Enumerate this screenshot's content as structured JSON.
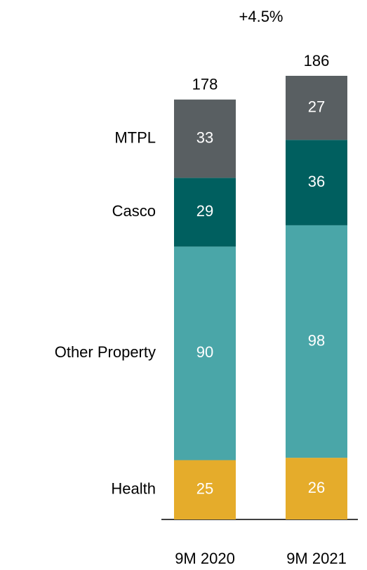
{
  "chart_data": {
    "type": "stacked_bar",
    "annotation": "+4.5%",
    "categories": [
      "9M 2020",
      "9M 2021"
    ],
    "totals": [
      178,
      186
    ],
    "series": [
      {
        "name": "Health",
        "color": "#e5ac2b",
        "values": [
          25,
          26
        ]
      },
      {
        "name": "Other Property",
        "color": "#4aa6a8",
        "values": [
          90,
          98
        ]
      },
      {
        "name": "Casco",
        "color": "#005f5f",
        "values": [
          29,
          36
        ]
      },
      {
        "name": "MTPL",
        "color": "#595f62",
        "values": [
          33,
          27
        ]
      }
    ]
  }
}
